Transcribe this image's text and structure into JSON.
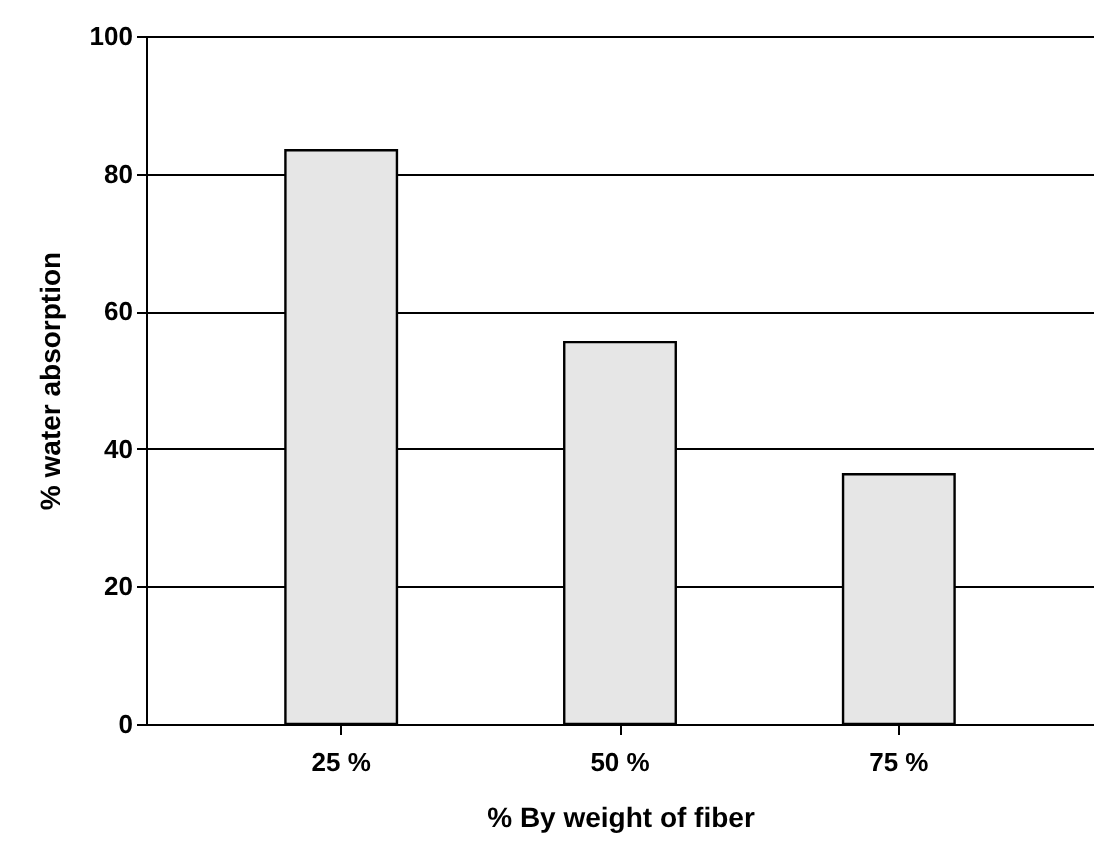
{
  "chart_data": {
    "type": "bar",
    "xlabel": "% By weight of fiber",
    "ylabel": "% water absorption",
    "categories": [
      "25 %",
      "50 %",
      "75 %"
    ],
    "values": [
      83.4,
      55.5,
      36.3
    ],
    "color": "#e6e6e6",
    "ylim": [
      0,
      100
    ],
    "yticks": [
      0,
      20,
      40,
      60,
      80,
      100
    ],
    "grid": "y"
  }
}
